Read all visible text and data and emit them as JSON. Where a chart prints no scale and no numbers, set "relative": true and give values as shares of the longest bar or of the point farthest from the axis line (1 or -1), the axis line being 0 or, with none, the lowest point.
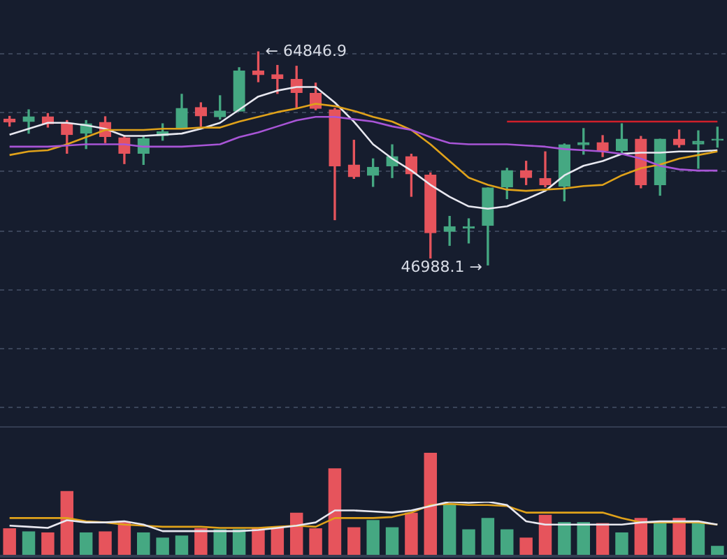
{
  "chart_data": [
    {
      "type": "candlestick",
      "categories": [
        null,
        null,
        null,
        null,
        null,
        null,
        null,
        null,
        null,
        null,
        null,
        null,
        null,
        null,
        null,
        null,
        null,
        null,
        null,
        null,
        null,
        null,
        null,
        null,
        null,
        null,
        null,
        null,
        null,
        null,
        null,
        null,
        null,
        null,
        null,
        null,
        null,
        null
      ],
      "ohlc": [
        [
          59210,
          59440,
          58620,
          58970
        ],
        [
          59010,
          59990,
          58030,
          59410
        ],
        [
          59410,
          59680,
          58540,
          58820
        ],
        [
          58820,
          59090,
          56350,
          57910
        ],
        [
          58030,
          59090,
          56740,
          58820
        ],
        [
          58940,
          59410,
          57240,
          57760
        ],
        [
          57640,
          57830,
          55480,
          56350
        ],
        [
          56350,
          57760,
          55410,
          57560
        ],
        [
          57830,
          58820,
          57440,
          58150
        ],
        [
          58420,
          61290,
          58420,
          60110
        ],
        [
          60180,
          60580,
          58620,
          59480
        ],
        [
          59410,
          61170,
          59210,
          59880
        ],
        [
          59880,
          63520,
          59880,
          63240
        ],
        [
          63240,
          64846.9,
          62340,
          62930
        ],
        [
          62930,
          63710,
          61360,
          62610
        ],
        [
          62530,
          63640,
          60180,
          61440
        ],
        [
          61360,
          62230,
          59990,
          60110
        ],
        [
          59990,
          60110,
          50780,
          55290
        ],
        [
          55360,
          57440,
          54240,
          54390
        ],
        [
          54510,
          55880,
          53570,
          55180
        ],
        [
          55290,
          57060,
          54310,
          56070
        ],
        [
          56070,
          56270,
          52740,
          54620
        ],
        [
          54510,
          54710,
          47570,
          49690
        ],
        [
          49810,
          51060,
          48630,
          50190
        ],
        [
          50080,
          50860,
          48830,
          50190
        ],
        [
          50310,
          53450,
          46988.1,
          53450
        ],
        [
          53530,
          55090,
          52540,
          54890
        ],
        [
          54890,
          55680,
          53720,
          54310
        ],
        [
          54240,
          56470,
          53530,
          53720
        ],
        [
          53600,
          57130,
          52360,
          57060
        ],
        [
          57060,
          58420,
          56270,
          57240
        ],
        [
          57240,
          57830,
          56070,
          56590
        ],
        [
          56590,
          58820,
          56270,
          57530
        ],
        [
          57530,
          57760,
          53450,
          53720
        ],
        [
          53720,
          57530,
          52830,
          57530
        ],
        [
          57530,
          58300,
          56860,
          57060
        ],
        [
          57130,
          58230,
          55090,
          57360
        ],
        [
          57440,
          58540,
          56860,
          57530
        ]
      ],
      "colors": [
        "#e6545c",
        "#45a882",
        "#e6545c",
        "#e6545c",
        "#45a882",
        "#e6545c",
        "#e6545c",
        "#45a882",
        "#45a882",
        "#45a882",
        "#e6545c",
        "#45a882",
        "#45a882",
        "#e6545c",
        "#e6545c",
        "#e6545c",
        "#e6545c",
        "#e6545c",
        "#e6545c",
        "#45a882",
        "#45a882",
        "#e6545c",
        "#e6545c",
        "#45a882",
        "#45a882",
        "#45a882",
        "#45a882",
        "#e6545c",
        "#e6545c",
        "#45a882",
        "#45a882",
        "#e6545c",
        "#45a882",
        "#e6545c",
        "#45a882",
        "#e6545c",
        "#45a882",
        "#45a882"
      ],
      "series": [
        {
          "type": "line",
          "color": "#a855d6",
          "values": [
            56900,
            56900,
            56900,
            57000,
            57100,
            57100,
            57100,
            56900,
            56900,
            56900,
            57000,
            57100,
            57700,
            58100,
            58600,
            59100,
            59400,
            59400,
            59200,
            59000,
            58600,
            58300,
            57700,
            57200,
            57100,
            57100,
            57100,
            57000,
            56900,
            56700,
            56600,
            56500,
            56300,
            55900,
            55300,
            55000,
            54900,
            54900
          ]
        },
        {
          "type": "line",
          "color": "#e0a21a",
          "values": [
            56200,
            56500,
            56600,
            57100,
            57700,
            58300,
            58300,
            58300,
            58400,
            58400,
            58500,
            58500,
            59000,
            59400,
            59800,
            60100,
            60500,
            60300,
            59900,
            59400,
            59000,
            58300,
            57100,
            55700,
            54300,
            53700,
            53300,
            53200,
            53300,
            53400,
            53600,
            53700,
            54500,
            55100,
            55400,
            55900,
            56200,
            56500
          ]
        },
        {
          "type": "line",
          "color": "#e8e8f0",
          "values": [
            57900,
            58400,
            58900,
            58900,
            58700,
            58400,
            57800,
            57800,
            57900,
            58000,
            58400,
            58900,
            60000,
            61100,
            61600,
            61900,
            61900,
            60600,
            59000,
            57100,
            55900,
            54900,
            53700,
            52700,
            51900,
            51700,
            51900,
            52500,
            53200,
            54500,
            55300,
            55700,
            56300,
            56400,
            56400,
            56500,
            56500,
            56600
          ]
        },
        {
          "type": "line",
          "color": "#d0202a",
          "values": [
            null,
            null,
            null,
            null,
            null,
            null,
            null,
            null,
            null,
            null,
            null,
            null,
            null,
            null,
            null,
            null,
            null,
            null,
            null,
            null,
            null,
            null,
            null,
            null,
            null,
            null,
            59000,
            59000,
            59000,
            59000,
            59000,
            59000,
            59000,
            59000,
            59000,
            59000,
            59000,
            59000
          ]
        }
      ],
      "ylim": [
        33360,
        69190
      ],
      "yticks": [
        {
          "value": 35120,
          "label": null
        },
        {
          "value": 40050,
          "label": null
        },
        {
          "value": 44990,
          "label": null
        },
        {
          "value": 49920,
          "label": null
        },
        {
          "value": 54860,
          "label": null
        },
        {
          "value": 59790,
          "label": null
        },
        {
          "value": 64730,
          "label": null
        }
      ],
      "grid": "y",
      "tick_labels": false,
      "annotations": [
        "← 64846.9",
        "46988.1 →"
      ]
    },
    {
      "type": "bar",
      "relative": true,
      "tick_labels": false,
      "categories": [
        null,
        null,
        null,
        null,
        null,
        null,
        null,
        null,
        null,
        null,
        null,
        null,
        null,
        null,
        null,
        null,
        null,
        null,
        null,
        null,
        null,
        null,
        null,
        null,
        null,
        null,
        null,
        null,
        null,
        null,
        null,
        null,
        null,
        null,
        null,
        null,
        null,
        null
      ],
      "colors": [
        "#e6545c",
        "#45a882",
        "#e6545c",
        "#e6545c",
        "#45a882",
        "#e6545c",
        "#e6545c",
        "#45a882",
        "#45a882",
        "#45a882",
        "#e6545c",
        "#45a882",
        "#45a882",
        "#e6545c",
        "#e6545c",
        "#e6545c",
        "#e6545c",
        "#e6545c",
        "#e6545c",
        "#45a882",
        "#45a882",
        "#e6545c",
        "#e6545c",
        "#45a882",
        "#45a882",
        "#45a882",
        "#45a882",
        "#e6545c",
        "#e6545c",
        "#45a882",
        "#45a882",
        "#e6545c",
        "#45a882",
        "#e6545c",
        "#45a882",
        "#e6545c",
        "#45a882",
        "#45a882"
      ],
      "values": [
        0.27,
        0.24,
        0.23,
        0.63,
        0.23,
        0.24,
        0.33,
        0.23,
        0.18,
        0.2,
        0.27,
        0.26,
        0.26,
        0.27,
        0.28,
        0.42,
        0.27,
        0.85,
        0.28,
        0.35,
        0.28,
        0.42,
        1,
        0.5,
        0.26,
        0.37,
        0.26,
        0.18,
        0.4,
        0.33,
        0.33,
        0.32,
        0.23,
        0.37,
        0.33,
        0.37,
        0.32,
        0.1
      ]
    },
    {
      "type": "line",
      "relative": true,
      "tick_labels": false,
      "categories": [
        null,
        null,
        null,
        null,
        null,
        null,
        null,
        null,
        null,
        null,
        null,
        null,
        null,
        null,
        null,
        null,
        null,
        null,
        null,
        null,
        null,
        null,
        null,
        null,
        null,
        null,
        null,
        null,
        null,
        null,
        null,
        null,
        null,
        null,
        null,
        null,
        null,
        null
      ],
      "series": [
        {
          "color": "#e8e8f0",
          "values": [
            0.56,
            0.54,
            0.52,
            0.66,
            0.62,
            0.62,
            0.64,
            0.58,
            0.46,
            0.46,
            0.46,
            0.46,
            0.46,
            0.48,
            0.52,
            0.56,
            0.62,
            0.84,
            0.84,
            0.82,
            0.8,
            0.84,
            0.92,
            1,
            0.98,
            1,
            0.94,
            0.64,
            0.58,
            0.58,
            0.58,
            0.58,
            0.58,
            0.62,
            0.64,
            0.64,
            0.64,
            0.58
          ]
        },
        {
          "color": "#e0a21a",
          "values": [
            0.7,
            0.7,
            0.7,
            0.7,
            0.64,
            0.62,
            0.58,
            0.56,
            0.54,
            0.54,
            0.54,
            0.52,
            0.52,
            0.52,
            0.54,
            0.56,
            0.54,
            0.7,
            0.7,
            0.7,
            0.72,
            0.8,
            0.94,
            0.96,
            0.94,
            0.94,
            0.92,
            0.8,
            0.8,
            0.8,
            0.8,
            0.8,
            0.7,
            0.62,
            0.62,
            0.62,
            0.62,
            0.58
          ]
        }
      ]
    }
  ]
}
